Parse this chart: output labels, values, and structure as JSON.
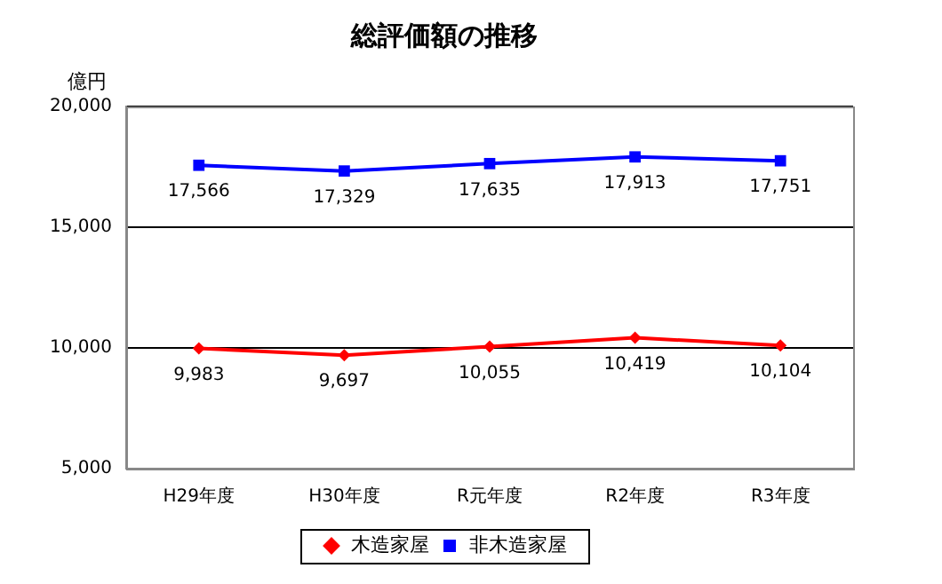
{
  "chart_data": {
    "type": "line",
    "title": "総評価額の推移",
    "ylabel": "億円",
    "categories": [
      "H29年度",
      "H30年度",
      "R元年度",
      "R2年度",
      "R3年度"
    ],
    "series": [
      {
        "name": "木造家屋",
        "color": "#ff0000",
        "marker": "diamond",
        "values": [
          9983,
          9697,
          10055,
          10419,
          10104
        ],
        "value_labels": [
          "9,983",
          "9,697",
          "10,055",
          "10,419",
          "10,104"
        ]
      },
      {
        "name": "非木造家屋",
        "color": "#0000ff",
        "marker": "square",
        "values": [
          17566,
          17329,
          17635,
          17913,
          17751
        ],
        "value_labels": [
          "17,566",
          "17,329",
          "17,635",
          "17,913",
          "17,751"
        ]
      }
    ],
    "ylim": [
      5000,
      20000
    ],
    "yticks": [
      {
        "value": 5000,
        "label": "5,000"
      },
      {
        "value": 10000,
        "label": "10,000"
      },
      {
        "value": 15000,
        "label": "15,000"
      },
      {
        "value": 20000,
        "label": "20,000"
      }
    ],
    "grid": "y",
    "legend": "bottom"
  }
}
